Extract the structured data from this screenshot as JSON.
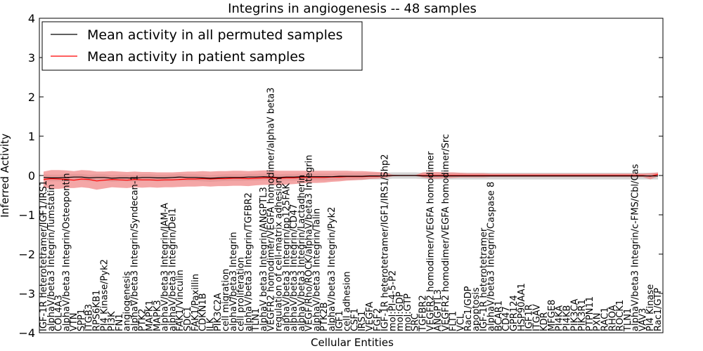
{
  "chart_data": {
    "type": "line",
    "title": "Integrins in angiogenesis -- 48 samples",
    "xlabel": "Cellular Entities",
    "ylabel": "Inferred Activity",
    "ylim": [
      -4,
      4
    ],
    "yticks": [
      -4,
      -3,
      -2,
      -1,
      0,
      1,
      2,
      3,
      4
    ],
    "grid": false,
    "legend_position": "top-left",
    "colors": {
      "permuted": "#000000",
      "patient": "#ff0000",
      "patient_band": "#f08080",
      "permuted_band": "#c8c8c8"
    },
    "categories": [
      "IGF-1R heterotetramer/IGF1/IRS1",
      "alphaV/beta3 Integrin/Tumstatin",
      "COL4A3",
      "alphaV/beta3 Integrin/Osteopontin",
      "VTN",
      "SPP1",
      "ITGB3",
      "RPS6KB1",
      "PI4 Kinase/Pyk2",
      "PI3K",
      "FN1",
      "angiogenesis",
      "alphaV/beta3 Integrin/Syndecan-1",
      "PTK2",
      "MAPK1",
      "MAPK3",
      "alphaV/beta3 Integrin/JAM-A",
      "alphaV/beta3 Integrin/Del1",
      "FAK1/Vinculin",
      "SDC1",
      "FAK1/Paxillin",
      "CDKN1B",
      "ILK",
      "PIK3C2A",
      "cell migration",
      "alphaV/beta3 Integrin",
      "cell proliferation",
      "alphaV/beta3 Integrin/TGFBR2",
      "TLN1",
      "alphaV beta3 Integrin/ANGPTL3",
      "VEGFR2 homodimer/VEGFA homodimer/alphaV beta3",
      "regulation of cell-matrix adhesion",
      "alphaV/beta3 Integrin/pp125FAK",
      "alphaV/beta3 Integrin/CD47",
      "alphaV/beta3 Integrin/Lactadherin",
      "VEGF/Rho/ROCK/alphaV/beta3 Integrin",
      "alphaV/beta3 Integrin/Talin",
      "PTK2B",
      "alphaV/beta3 Integrin/Pyk2",
      "IGF1",
      "cell adhesion",
      "CSF1",
      "IRS1",
      "VEGFA",
      "FGF2",
      "IGF-1R heterotetramer/IGF1/IRS1/Shp2",
      "mol:PI-4-5-P2",
      "mol:GDP",
      "mol:GTP",
      "SRC",
      "TGFBR2",
      "VEGFR2 homodimer/VEGFA homodimer",
      "ANGPTL3",
      "VEGFR2 homodimer/VEGFA homodimer/Src",
      "FLT1",
      "VCL",
      "Rac1/GDP",
      "apoptosis",
      "IGF-1R heterotetramer",
      "alphaV/beta3 Integrin/Caspase 8",
      "BCAR1",
      "CD47",
      "GPR124",
      "HSP90AA1",
      "IGF1R",
      "ITGAV",
      "KDR",
      "MFGE8",
      "PI4KA",
      "PI4KB",
      "PIK3CA",
      "PIK3R1",
      "PTPN11",
      "PXN",
      "RAC1",
      "RHOA",
      "ROCK1",
      "TLN1",
      "alphaV/beta3 Integrin/c-FMS/Cbl/Cas",
      "VAV3",
      "PI4 Kinase",
      "Rac1/GTP"
    ],
    "series": [
      {
        "name": "Mean activity in all permuted samples",
        "values": [
          -0.05,
          -0.06,
          -0.06,
          -0.05,
          -0.04,
          -0.04,
          -0.06,
          -0.05,
          -0.05,
          -0.07,
          -0.06,
          -0.06,
          -0.07,
          -0.05,
          -0.05,
          -0.06,
          -0.06,
          -0.05,
          -0.04,
          -0.05,
          -0.05,
          -0.06,
          -0.07,
          -0.06,
          -0.05,
          -0.05,
          -0.05,
          -0.04,
          -0.04,
          -0.03,
          -0.04,
          -0.05,
          -0.04,
          -0.04,
          -0.03,
          -0.03,
          -0.03,
          -0.03,
          -0.03,
          -0.02,
          -0.02,
          -0.02,
          -0.02,
          -0.01,
          -0.01,
          -0.01,
          0.0,
          0.0,
          0.0,
          0.0,
          -0.01,
          -0.01,
          -0.01,
          -0.01,
          -0.01,
          -0.01,
          -0.01,
          -0.01,
          -0.01,
          -0.01,
          -0.01,
          -0.01,
          -0.01,
          -0.01,
          -0.01,
          -0.01,
          -0.01,
          -0.01,
          -0.01,
          -0.01,
          -0.01,
          -0.01,
          -0.01,
          -0.01,
          -0.01,
          -0.01,
          -0.01,
          -0.01,
          -0.01,
          -0.01,
          -0.01,
          -0.01
        ],
        "band_lower": [
          -0.14,
          -0.15,
          -0.15,
          -0.14,
          -0.13,
          -0.13,
          -0.15,
          -0.14,
          -0.14,
          -0.16,
          -0.15,
          -0.15,
          -0.16,
          -0.14,
          -0.14,
          -0.15,
          -0.15,
          -0.14,
          -0.13,
          -0.14,
          -0.14,
          -0.15,
          -0.16,
          -0.15,
          -0.14,
          -0.14,
          -0.14,
          -0.13,
          -0.13,
          -0.12,
          -0.13,
          -0.14,
          -0.13,
          -0.13,
          -0.12,
          -0.12,
          -0.12,
          -0.12,
          -0.12,
          -0.11,
          -0.11,
          -0.11,
          -0.11,
          -0.1,
          -0.1,
          -0.1,
          -0.08,
          -0.08,
          -0.08,
          -0.08,
          -0.09,
          -0.1,
          -0.1,
          -0.1,
          -0.1,
          -0.1,
          -0.1,
          -0.1,
          -0.1,
          -0.1,
          -0.1,
          -0.1,
          -0.1,
          -0.1,
          -0.1,
          -0.1,
          -0.1,
          -0.1,
          -0.1,
          -0.1,
          -0.1,
          -0.1,
          -0.1,
          -0.1,
          -0.1,
          -0.1,
          -0.1,
          -0.1,
          -0.1,
          -0.1,
          -0.1,
          -0.1
        ],
        "band_upper": [
          0.03,
          0.02,
          0.02,
          0.03,
          0.04,
          0.04,
          0.02,
          0.03,
          0.03,
          0.01,
          0.02,
          0.02,
          0.01,
          0.03,
          0.03,
          0.02,
          0.02,
          0.03,
          0.04,
          0.03,
          0.03,
          0.02,
          0.01,
          0.02,
          0.03,
          0.03,
          0.03,
          0.04,
          0.04,
          0.05,
          0.04,
          0.03,
          0.04,
          0.04,
          0.05,
          0.05,
          0.05,
          0.05,
          0.05,
          0.06,
          0.06,
          0.06,
          0.06,
          0.07,
          0.07,
          0.07,
          0.08,
          0.08,
          0.08,
          0.08,
          0.07,
          0.07,
          0.07,
          0.07,
          0.07,
          0.07,
          0.07,
          0.07,
          0.07,
          0.07,
          0.07,
          0.07,
          0.07,
          0.07,
          0.07,
          0.07,
          0.07,
          0.07,
          0.07,
          0.07,
          0.07,
          0.07,
          0.07,
          0.07,
          0.07,
          0.07,
          0.07,
          0.07,
          0.07,
          0.07,
          0.07,
          0.07
        ]
      },
      {
        "name": "Mean activity in patient samples",
        "values": [
          -0.1,
          -0.08,
          -0.09,
          -0.1,
          -0.12,
          -0.09,
          -0.1,
          -0.14,
          -0.12,
          -0.1,
          -0.11,
          -0.12,
          -0.1,
          -0.11,
          -0.11,
          -0.12,
          -0.11,
          -0.11,
          -0.1,
          -0.09,
          -0.09,
          -0.08,
          -0.09,
          -0.08,
          -0.08,
          -0.07,
          -0.07,
          -0.08,
          -0.07,
          -0.06,
          -0.06,
          -0.07,
          -0.06,
          -0.06,
          -0.05,
          -0.05,
          -0.05,
          -0.05,
          -0.04,
          -0.04,
          -0.03,
          -0.03,
          -0.03,
          -0.02,
          -0.02,
          -0.01,
          0.0,
          0.0,
          0.0,
          0.0,
          0.0,
          0.0,
          0.0,
          0.0,
          0.0,
          0.0,
          0.0,
          0.0,
          0.0,
          0.0,
          0.0,
          0.0,
          0.0,
          0.0,
          0.0,
          0.0,
          0.0,
          0.0,
          0.0,
          0.0,
          0.0,
          0.0,
          0.0,
          0.0,
          0.0,
          0.0,
          0.0,
          0.0,
          0.0,
          0.0,
          -0.02,
          0.03
        ],
        "band_lower": [
          -0.3,
          -0.34,
          -0.34,
          -0.32,
          -0.32,
          -0.3,
          -0.32,
          -0.36,
          -0.33,
          -0.3,
          -0.31,
          -0.32,
          -0.3,
          -0.31,
          -0.3,
          -0.31,
          -0.3,
          -0.3,
          -0.29,
          -0.28,
          -0.28,
          -0.27,
          -0.28,
          -0.27,
          -0.27,
          -0.26,
          -0.26,
          -0.27,
          -0.25,
          -0.24,
          -0.24,
          -0.25,
          -0.23,
          -0.22,
          -0.2,
          -0.19,
          -0.19,
          -0.18,
          -0.16,
          -0.15,
          -0.13,
          -0.12,
          -0.11,
          -0.09,
          -0.08,
          -0.06,
          -0.02,
          -0.01,
          -0.01,
          -0.01,
          -0.05,
          -0.08,
          -0.08,
          -0.07,
          -0.06,
          -0.05,
          -0.05,
          -0.05,
          -0.05,
          -0.04,
          -0.04,
          -0.04,
          -0.04,
          -0.04,
          -0.04,
          -0.04,
          -0.04,
          -0.04,
          -0.04,
          -0.04,
          -0.04,
          -0.04,
          -0.04,
          -0.04,
          -0.04,
          -0.04,
          -0.04,
          -0.04,
          -0.04,
          -0.04,
          -0.1,
          -0.02
        ],
        "band_upper": [
          0.1,
          0.14,
          0.14,
          0.13,
          0.11,
          0.14,
          0.13,
          0.1,
          0.1,
          0.11,
          0.1,
          0.09,
          0.1,
          0.09,
          0.09,
          0.08,
          0.08,
          0.08,
          0.09,
          0.1,
          0.1,
          0.11,
          0.1,
          0.11,
          0.11,
          0.12,
          0.12,
          0.11,
          0.12,
          0.13,
          0.13,
          0.12,
          0.12,
          0.12,
          0.12,
          0.12,
          0.12,
          0.12,
          0.12,
          0.12,
          0.12,
          0.11,
          0.11,
          0.1,
          0.09,
          0.08,
          0.02,
          0.01,
          0.01,
          0.01,
          0.08,
          0.09,
          0.09,
          0.08,
          0.08,
          0.07,
          0.06,
          0.06,
          0.06,
          0.05,
          0.05,
          0.05,
          0.05,
          0.05,
          0.05,
          0.05,
          0.05,
          0.05,
          0.05,
          0.05,
          0.05,
          0.05,
          0.05,
          0.05,
          0.05,
          0.05,
          0.05,
          0.05,
          0.05,
          0.05,
          0.06,
          0.08
        ]
      }
    ]
  }
}
